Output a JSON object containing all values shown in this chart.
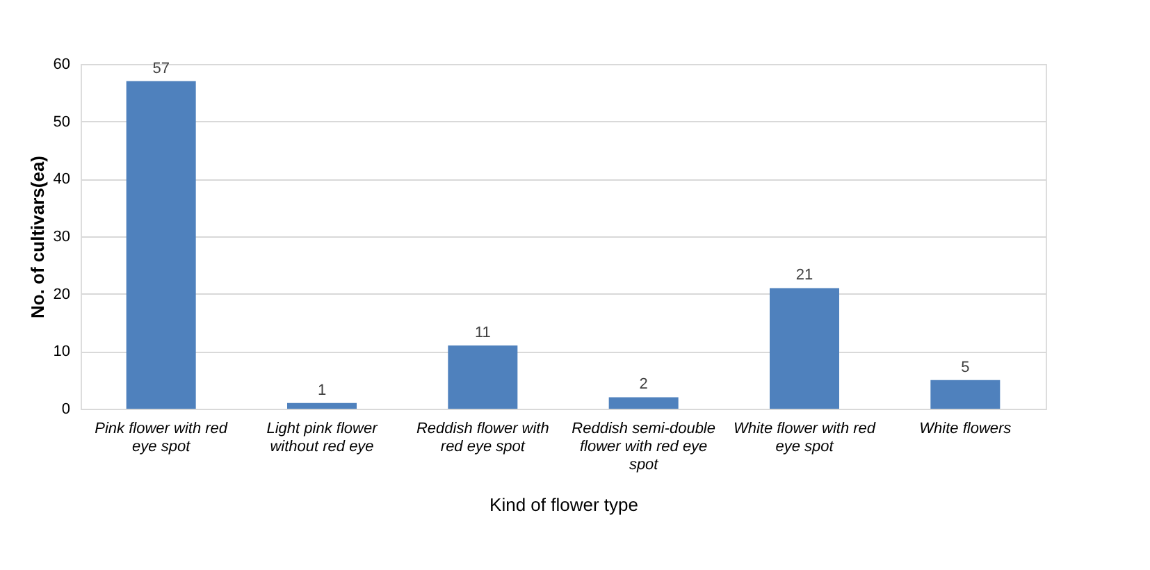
{
  "chart_data": {
    "type": "bar",
    "xlabel": "Kind of flower type",
    "ylabel": "No. of cultivars(ea)",
    "categories": [
      "Pink flower with red eye spot",
      "Light pink flower without red eye",
      "Reddish flower with red eye spot",
      "Reddish semi-double flower with red eye spot",
      "White flower with red eye spot",
      "White flowers"
    ],
    "values": [
      57,
      1,
      11,
      2,
      21,
      5
    ],
    "color": "#4f81bd",
    "ylim": [
      0,
      60
    ],
    "yticks": [
      0,
      10,
      20,
      30,
      40,
      50,
      60
    ],
    "grid": "y",
    "data_labels": true
  }
}
